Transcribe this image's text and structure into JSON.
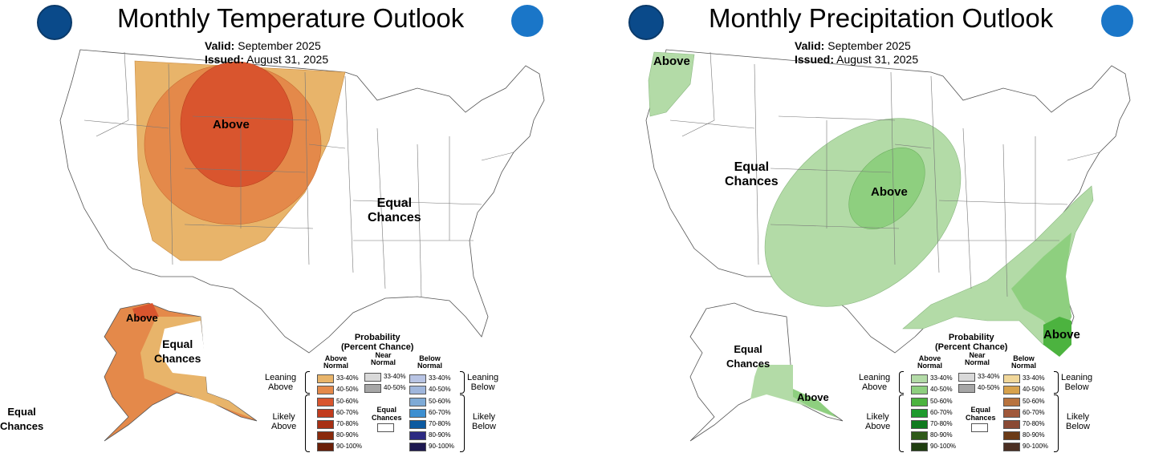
{
  "temperature": {
    "title": "Monthly Temperature Outlook",
    "valid_label": "Valid:",
    "valid_value": "September 2025",
    "issued_label": "Issued:",
    "issued_value": "August 31, 2025",
    "labels": {
      "above_main": "Above",
      "equal_east_1": "Equal",
      "equal_east_2": "Chances",
      "alaska_above": "Above",
      "alaska_equal_1": "Equal",
      "alaska_equal_2": "Chances",
      "hawaii_equal_1": "Equal",
      "hawaii_equal_2": "Chances"
    },
    "colors": {
      "c33_40": "#e8b46a",
      "c40_50": "#e4894a",
      "c50_60": "#d9552e",
      "c60_70": "#c23c1e"
    }
  },
  "precipitation": {
    "title": "Monthly Precipitation Outlook",
    "valid_label": "Valid:",
    "valid_value": "September 2025",
    "issued_label": "Issued:",
    "issued_value": "August 31, 2025",
    "labels": {
      "nw_above": "Above",
      "equal_west_1": "Equal",
      "equal_west_2": "Chances",
      "central_above": "Above",
      "florida_above": "Above",
      "alaska_equal_1": "Equal",
      "alaska_equal_2": "Chances",
      "alaska_above": "Above"
    },
    "colors": {
      "c33_40": "#b3dba7",
      "c40_50": "#8ecf7f",
      "c50_60": "#4cb33f"
    }
  },
  "legend": {
    "title_1": "Probability",
    "title_2": "(Percent Chance)",
    "near_normal_1": "Near",
    "near_normal_2": "Normal",
    "equal_chances_1": "Equal",
    "equal_chances_2": "Chances",
    "leaning_1": "Leaning",
    "likely_1": "Likely",
    "above_word": "Above",
    "below_word": "Below",
    "normal_word": "Normal",
    "ranges": [
      "33-40%",
      "40-50%",
      "50-60%",
      "60-70%",
      "70-80%",
      "80-90%",
      "90-100%"
    ],
    "near_ranges": [
      "33-40%",
      "40-50%"
    ],
    "temp_above_colors": [
      "#e8b46a",
      "#e4894a",
      "#d9552e",
      "#c23c1e",
      "#a83014",
      "#8a2a0c",
      "#6b1f08"
    ],
    "temp_below_colors": [
      "#b8c4e4",
      "#9fb6dc",
      "#7eaad6",
      "#3d8fd0",
      "#0c5aa0",
      "#2d2a82",
      "#1d1850"
    ],
    "precip_above_colors": [
      "#b3dba7",
      "#8ecf7f",
      "#4cb33f",
      "#1f9a2e",
      "#0f7a1e",
      "#2f5a1a",
      "#1f3d10"
    ],
    "precip_below_colors": [
      "#f1d79a",
      "#d7a24c",
      "#b8733e",
      "#a0583a",
      "#8a4a34",
      "#6b3a16",
      "#4a2e22"
    ],
    "near_colors": [
      "#d9d9d9",
      "#a6a6a6"
    ]
  }
}
